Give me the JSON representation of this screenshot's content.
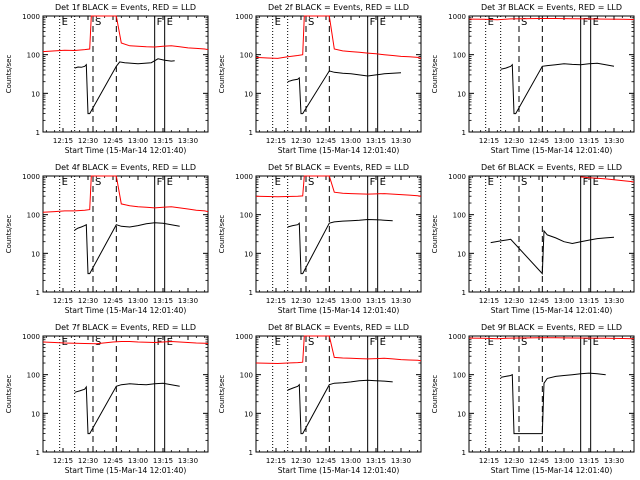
{
  "chart_data": {
    "type": "line",
    "figure_grid": [
      3,
      3
    ],
    "yscale": "log",
    "ylim": [
      1,
      1000
    ],
    "ylabel": "Counts/sec",
    "xlabel": "Start Time (15-Mar-14 12:01:40)",
    "xlim": [
      "12:03",
      "13:42"
    ],
    "xticks": [
      "12:15",
      "12:30",
      "12:45",
      "13:00",
      "13:15",
      "13:30"
    ],
    "yticks": [
      "1",
      "10",
      "100",
      "1000"
    ],
    "colors": {
      "events": "#000000",
      "lld": "#ff0000"
    },
    "marker_lines": [
      {
        "time": "12:13",
        "style": "dotted",
        "label": "E"
      },
      {
        "time": "12:22",
        "style": "dotted",
        "label": ""
      },
      {
        "time": "12:33",
        "style": "dashed",
        "label": "S"
      },
      {
        "time": "12:47",
        "style": "dashed",
        "label": ""
      },
      {
        "time": "13:10",
        "style": "solid",
        "label": "F"
      },
      {
        "time": "13:16",
        "style": "solid",
        "label": "E"
      }
    ],
    "panels": [
      {
        "title": "Det 1f BLACK = Events, RED = LLD",
        "series": [
          {
            "name": "Events",
            "x": [
              "12:22",
              "12:24",
              "12:26",
              "12:28",
              "12:29",
              "12:30",
              "12:31",
              "12:47",
              "12:49",
              "12:52",
              "12:56",
              "13:00",
              "13:04",
              "13:08",
              "13:12",
              "13:16",
              "13:20",
              "13:22"
            ],
            "y": [
              45,
              48,
              47,
              50,
              55,
              3,
              3,
              50,
              65,
              62,
              60,
              58,
              60,
              62,
              78,
              72,
              68,
              70
            ]
          },
          {
            "name": "LLD",
            "x": [
              "12:03",
              "12:10",
              "12:16",
              "12:22",
              "12:28",
              "12:31",
              "12:32",
              "12:34",
              "12:45",
              "12:47",
              "12:50",
              "12:55",
              "13:00",
              "13:05",
              "13:10",
              "13:15",
              "13:20",
              "13:25",
              "13:30",
              "13:35",
              "13:40",
              "13:42"
            ],
            "y": [
              120,
              125,
              130,
              128,
              135,
              140,
              1000,
              1000,
              1000,
              1000,
              200,
              170,
              165,
              160,
              158,
              165,
              170,
              160,
              150,
              145,
              140,
              135
            ]
          }
        ]
      },
      {
        "title": "Det 2f BLACK = Events, RED = LLD",
        "series": [
          {
            "name": "Events",
            "x": [
              "12:22",
              "12:25",
              "12:28",
              "12:29",
              "12:30",
              "12:31",
              "12:47",
              "12:50",
              "12:55",
              "13:00",
              "13:05",
              "13:10",
              "13:15",
              "13:20",
              "13:25",
              "13:30"
            ],
            "y": [
              20,
              22,
              23,
              25,
              3,
              3,
              38,
              35,
              33,
              32,
              30,
              28,
              30,
              32,
              33,
              34
            ]
          },
          {
            "name": "LLD",
            "x": [
              "12:03",
              "12:10",
              "12:16",
              "12:22",
              "12:28",
              "12:31",
              "12:32",
              "12:34",
              "12:45",
              "12:47",
              "12:50",
              "12:55",
              "13:00",
              "13:05",
              "13:10",
              "13:15",
              "13:20",
              "13:25",
              "13:30",
              "13:35",
              "13:40",
              "13:42"
            ],
            "y": [
              85,
              82,
              80,
              88,
              95,
              100,
              1000,
              1000,
              1000,
              1000,
              140,
              125,
              120,
              115,
              110,
              105,
              100,
              95,
              90,
              88,
              85,
              80
            ]
          }
        ]
      },
      {
        "title": "Det 3f BLACK = Events, RED = LLD",
        "series": [
          {
            "name": "Events",
            "x": [
              "12:22",
              "12:25",
              "12:28",
              "12:29",
              "12:30",
              "12:31",
              "12:47",
              "12:50",
              "12:55",
              "13:00",
              "13:05",
              "13:10",
              "13:15",
              "13:20",
              "13:25",
              "13:30"
            ],
            "y": [
              42,
              45,
              50,
              55,
              3,
              3,
              50,
              52,
              55,
              58,
              56,
              55,
              58,
              60,
              55,
              50
            ]
          },
          {
            "name": "LLD",
            "x": [
              "12:03",
              "12:12",
              "12:20",
              "12:28",
              "12:35",
              "12:45",
              "12:55",
              "13:05",
              "13:15",
              "13:25",
              "13:35",
              "13:42"
            ],
            "y": [
              830,
              820,
              800,
              840,
              850,
              860,
              860,
              850,
              840,
              830,
              820,
              810
            ]
          }
        ]
      },
      {
        "title": "Det 4f BLACK = Events, RED = LLD",
        "series": [
          {
            "name": "Events",
            "x": [
              "12:22",
              "12:24",
              "12:26",
              "12:28",
              "12:29",
              "12:30",
              "12:31",
              "12:47",
              "12:50",
              "12:55",
              "13:00",
              "13:05",
              "13:10",
              "13:15",
              "13:20",
              "13:25"
            ],
            "y": [
              40,
              45,
              48,
              52,
              55,
              3,
              3,
              55,
              50,
              48,
              52,
              58,
              62,
              60,
              55,
              50
            ]
          },
          {
            "name": "LLD",
            "x": [
              "12:03",
              "12:10",
              "12:16",
              "12:22",
              "12:28",
              "12:31",
              "12:32",
              "12:34",
              "12:45",
              "12:47",
              "12:50",
              "12:55",
              "13:00",
              "13:05",
              "13:10",
              "13:15",
              "13:20",
              "13:25",
              "13:30",
              "13:35",
              "13:40",
              "13:42"
            ],
            "y": [
              115,
              120,
              125,
              125,
              130,
              135,
              1000,
              1000,
              1000,
              1000,
              190,
              170,
              160,
              155,
              150,
              155,
              160,
              150,
              140,
              130,
              125,
              120
            ]
          }
        ]
      },
      {
        "title": "Det 5f BLACK = Events, RED = LLD",
        "series": [
          {
            "name": "Events",
            "x": [
              "12:22",
              "12:25",
              "12:28",
              "12:29",
              "12:30",
              "12:31",
              "12:47",
              "12:50",
              "12:55",
              "13:00",
              "13:05",
              "13:10",
              "13:15",
              "13:20",
              "13:25"
            ],
            "y": [
              48,
              52,
              55,
              60,
              3,
              3,
              60,
              65,
              68,
              70,
              72,
              75,
              74,
              72,
              70
            ]
          },
          {
            "name": "LLD",
            "x": [
              "12:03",
              "12:10",
              "12:16",
              "12:22",
              "12:28",
              "12:31",
              "12:32",
              "12:34",
              "12:45",
              "12:47",
              "12:50",
              "12:55",
              "13:00",
              "13:05",
              "13:10",
              "13:15",
              "13:20",
              "13:25",
              "13:30",
              "13:35",
              "13:40",
              "13:42"
            ],
            "y": [
              300,
              295,
              290,
              295,
              300,
              305,
              1000,
              1000,
              1000,
              1000,
              380,
              360,
              350,
              345,
              340,
              345,
              350,
              340,
              330,
              320,
              310,
              300
            ]
          }
        ]
      },
      {
        "title": "Det 6f BLACK = Events, RED = LLD",
        "series": [
          {
            "name": "Events",
            "x": [
              "12:16",
              "12:19",
              "12:22",
              "12:25",
              "12:28",
              "12:47",
              "12:48",
              "12:50",
              "12:55",
              "13:00",
              "13:05",
              "13:10",
              "13:15",
              "13:20",
              "13:25",
              "13:30"
            ],
            "y": [
              19,
              20,
              21,
              22,
              23,
              3,
              38,
              30,
              25,
              20,
              18,
              20,
              22,
              24,
              25,
              26
            ]
          },
          {
            "name": "LLD",
            "x": [
              "13:10",
              "13:15",
              "13:20",
              "13:25",
              "13:30",
              "13:35",
              "13:40",
              "13:42"
            ],
            "y": [
              950,
              900,
              870,
              840,
              800,
              760,
              720,
              700
            ]
          }
        ]
      },
      {
        "title": "Det 7f BLACK = Events, RED = LLD",
        "series": [
          {
            "name": "Events",
            "x": [
              "12:22",
              "12:25",
              "12:28",
              "12:29",
              "12:30",
              "12:31",
              "12:47",
              "12:50",
              "12:55",
              "13:00",
              "13:05",
              "13:10",
              "13:15",
              "13:20",
              "13:25"
            ],
            "y": [
              35,
              38,
              42,
              48,
              3,
              3,
              50,
              55,
              58,
              56,
              55,
              58,
              60,
              55,
              50
            ]
          },
          {
            "name": "LLD",
            "x": [
              "12:03",
              "12:10",
              "12:16",
              "12:22",
              "12:28",
              "12:35",
              "12:45",
              "12:50",
              "12:55",
              "13:00",
              "13:05",
              "13:10",
              "13:15",
              "13:20",
              "13:25",
              "13:30",
              "13:35",
              "13:40",
              "13:42"
            ],
            "y": [
              700,
              680,
              660,
              650,
              640,
              630,
              700,
              720,
              720,
              700,
              690,
              680,
              700,
              720,
              700,
              680,
              660,
              650,
              640
            ]
          }
        ]
      },
      {
        "title": "Det 8f BLACK = Events, RED = LLD",
        "series": [
          {
            "name": "Events",
            "x": [
              "12:22",
              "12:25",
              "12:28",
              "12:29",
              "12:30",
              "12:31",
              "12:47",
              "12:50",
              "12:55",
              "13:00",
              "13:05",
              "13:10",
              "13:15",
              "13:20",
              "13:25"
            ],
            "y": [
              40,
              45,
              50,
              55,
              3,
              3,
              55,
              60,
              62,
              65,
              70,
              72,
              70,
              68,
              65
            ]
          },
          {
            "name": "LLD",
            "x": [
              "12:03",
              "12:10",
              "12:16",
              "12:22",
              "12:28",
              "12:31",
              "12:32",
              "12:34",
              "12:45",
              "12:47",
              "12:50",
              "12:55",
              "13:00",
              "13:05",
              "13:10",
              "13:15",
              "13:20",
              "13:25",
              "13:30",
              "13:35",
              "13:40",
              "13:42"
            ],
            "y": [
              200,
              198,
              195,
              200,
              205,
              210,
              1000,
              1000,
              1000,
              1000,
              280,
              270,
              265,
              260,
              255,
              260,
              265,
              255,
              245,
              240,
              235,
              230
            ]
          }
        ]
      },
      {
        "title": "Det 9f BLACK = Events, RED = LLD",
        "series": [
          {
            "name": "Events",
            "x": [
              "12:22",
              "12:25",
              "12:28",
              "12:29",
              "12:30",
              "12:31",
              "12:47",
              "12:48",
              "12:50",
              "12:55",
              "13:00",
              "13:05",
              "13:10",
              "13:15",
              "13:20",
              "13:25"
            ],
            "y": [
              85,
              90,
              95,
              100,
              3,
              3,
              3,
              60,
              80,
              90,
              95,
              100,
              105,
              110,
              105,
              100
            ]
          },
          {
            "name": "LLD",
            "x": [
              "12:03",
              "12:12",
              "12:20",
              "12:28",
              "12:35",
              "12:45",
              "12:55",
              "13:05",
              "13:15",
              "13:25",
              "13:35",
              "13:42"
            ],
            "y": [
              880,
              870,
              850,
              880,
              890,
              900,
              900,
              890,
              880,
              870,
              860,
              850
            ]
          }
        ]
      }
    ]
  }
}
